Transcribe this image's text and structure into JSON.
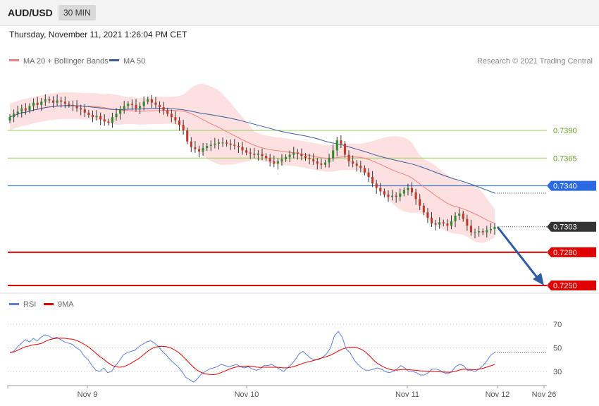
{
  "header": {
    "pair": "AUD/USD",
    "timeframe": "30 MIN"
  },
  "datetime": "Thursday, November 11, 2021 1:26:04 PM CET",
  "legend": {
    "ma20": "MA 20 + Bollinger Bands",
    "ma50": "MA 50",
    "ma20_color": "#f08080",
    "ma50_color": "#3a5a9a",
    "credit": "Research © 2021 Trading Central"
  },
  "rsi_legend": {
    "rsi": "RSI",
    "ma9": "9MA",
    "rsi_color": "#5b7fd6",
    "ma9_color": "#e00000"
  },
  "x_axis": {
    "ticks": [
      "Nov 9",
      "Nov 10",
      "Nov 11",
      "Nov 12",
      "Nov 26"
    ]
  },
  "levels": [
    {
      "value": "0.7390",
      "style": "green-line",
      "color": "#9acd5a"
    },
    {
      "value": "0.7365",
      "style": "green-line",
      "color": "#9acd5a"
    },
    {
      "value": "0.7340",
      "style": "blue-tag",
      "color": "#2a6ae0"
    },
    {
      "value": "0.7303",
      "style": "dark-tag",
      "color": "#333333"
    },
    {
      "value": "0.7280",
      "style": "red-tag",
      "color": "#e00000"
    },
    {
      "value": "0.7250",
      "style": "red-tag",
      "color": "#e00000"
    }
  ],
  "rsi_axis": [
    "70",
    "50",
    "30"
  ],
  "chart_data": {
    "type": "candlestick",
    "series_note": "AUD/USD 30-minute closes (approximate)",
    "y_range": [
      0.725,
      0.7438
    ],
    "closes": [
      0.7402,
      0.7405,
      0.7407,
      0.741,
      0.7408,
      0.7412,
      0.7415,
      0.7413,
      0.7416,
      0.7418,
      0.7417,
      0.7415,
      0.7417,
      0.7416,
      0.7414,
      0.7413,
      0.7412,
      0.741,
      0.7409,
      0.7406,
      0.7404,
      0.7402,
      0.7403,
      0.74,
      0.7398,
      0.7397,
      0.7402,
      0.7405,
      0.7409,
      0.7412,
      0.7414,
      0.7413,
      0.741,
      0.7412,
      0.7416,
      0.7418,
      0.7415,
      0.7413,
      0.7411,
      0.7408,
      0.7405,
      0.7402,
      0.7399,
      0.7395,
      0.739,
      0.738,
      0.7375,
      0.7373,
      0.7371,
      0.7374,
      0.7376,
      0.7377,
      0.7378,
      0.7379,
      0.7379,
      0.7378,
      0.7377,
      0.7376,
      0.7375,
      0.7372,
      0.737,
      0.7369,
      0.7368,
      0.7369,
      0.7367,
      0.7365,
      0.7362,
      0.736,
      0.7362,
      0.7364,
      0.7366,
      0.7368,
      0.737,
      0.7369,
      0.7367,
      0.7365,
      0.7364,
      0.7362,
      0.736,
      0.7359,
      0.7361,
      0.7365,
      0.7372,
      0.7381,
      0.7378,
      0.7368,
      0.7362,
      0.736,
      0.7358,
      0.7356,
      0.7352,
      0.7348,
      0.7342,
      0.7338,
      0.7335,
      0.7332,
      0.733,
      0.7331,
      0.733,
      0.7333,
      0.7336,
      0.7338,
      0.7334,
      0.7328,
      0.7322,
      0.7316,
      0.7311,
      0.7306,
      0.7305,
      0.7307,
      0.7306,
      0.7304,
      0.7308,
      0.7313,
      0.7315,
      0.731,
      0.7304,
      0.7298,
      0.7298,
      0.7299,
      0.7298,
      0.73,
      0.7301,
      0.7303
    ],
    "rsi": [
      46,
      47,
      51,
      54,
      57,
      55,
      58,
      56,
      59,
      61,
      60,
      58,
      59,
      57,
      55,
      54,
      53,
      50,
      48,
      43,
      40,
      35,
      31,
      30,
      33,
      29,
      30,
      35,
      39,
      44,
      46,
      47,
      48,
      51,
      53,
      55,
      56,
      54,
      51,
      47,
      44,
      40,
      37,
      34,
      30,
      25,
      23,
      21,
      24,
      28,
      30,
      32,
      33,
      34,
      36,
      35,
      34,
      35,
      36,
      34,
      33,
      34,
      32,
      31,
      32,
      35,
      35,
      36,
      34,
      32,
      30,
      33,
      36,
      40,
      45,
      47,
      44,
      41,
      40,
      40,
      42,
      45,
      50,
      60,
      64,
      59,
      49,
      46,
      40,
      36,
      33,
      31,
      31,
      32,
      33,
      32,
      30,
      29,
      30,
      32,
      35,
      33,
      30,
      30,
      29,
      27,
      27,
      29,
      32,
      32,
      31,
      29,
      28,
      30,
      34,
      36,
      35,
      31,
      31,
      30,
      32,
      35,
      39,
      44,
      46
    ]
  }
}
